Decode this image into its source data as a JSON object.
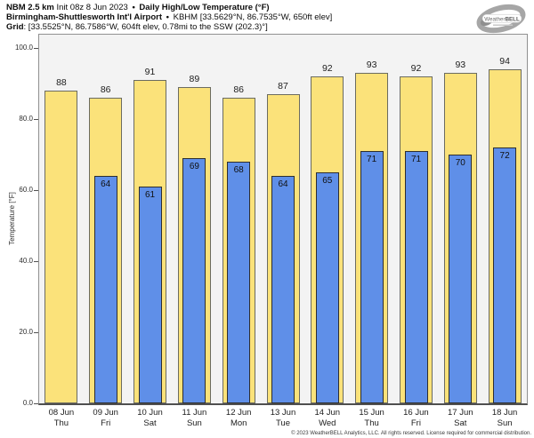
{
  "header": {
    "product_bold": "NBM 2.5 km",
    "product_rest": "Init 08z 8 Jun 2023",
    "sep1": "•",
    "title_bold": "Daily High/Low Temperature (°F)",
    "station_bold": "Birmingham-Shuttlesworth Int'l Airport",
    "sep2": "•",
    "station_rest": "KBHM [33.5629°N, 86.7535°W, 650ft elev]",
    "grid_bold": "Grid",
    "grid_rest": ": [33.5525°N, 86.7586°W, 604ft elev, 0.78mi to the SSW (202.3)°]"
  },
  "logo": {
    "brand_weather": "Weather",
    "brand_bell": "BELL"
  },
  "chart_data": {
    "type": "bar",
    "title": "Daily High/Low Temperature (°F)",
    "ylabel": "Temperature [°F]",
    "ylim": [
      0,
      103.75
    ],
    "yticks": [
      0,
      20,
      40,
      60,
      80,
      100
    ],
    "ytick_labels": [
      "0.0",
      "20.0",
      "40.0",
      "60.0",
      "80.0",
      "100.0"
    ],
    "categories": [
      "08 Jun",
      "09 Jun",
      "10 Jun",
      "11 Jun",
      "12 Jun",
      "13 Jun",
      "14 Jun",
      "15 Jun",
      "16 Jun",
      "17 Jun",
      "18 Jun"
    ],
    "category_sublabels": [
      "Thu",
      "Fri",
      "Sat",
      "Sun",
      "Mon",
      "Tue",
      "Wed",
      "Thu",
      "Fri",
      "Sat",
      "Sun"
    ],
    "series": [
      {
        "name": "High",
        "color": "#FBE27A",
        "values": [
          88,
          86,
          91,
          89,
          86,
          87,
          92,
          93,
          92,
          93,
          94
        ]
      },
      {
        "name": "Low",
        "color": "#5F8FE8",
        "values": [
          null,
          64,
          61,
          69,
          68,
          64,
          65,
          71,
          71,
          70,
          72
        ]
      }
    ],
    "grid": false,
    "legend": "none",
    "plot_background": "#f3f3f3"
  },
  "footer": {
    "copyright": "© 2023 WeatherBELL Analytics, LLC. All rights reserved. License required for commercial distribution."
  }
}
